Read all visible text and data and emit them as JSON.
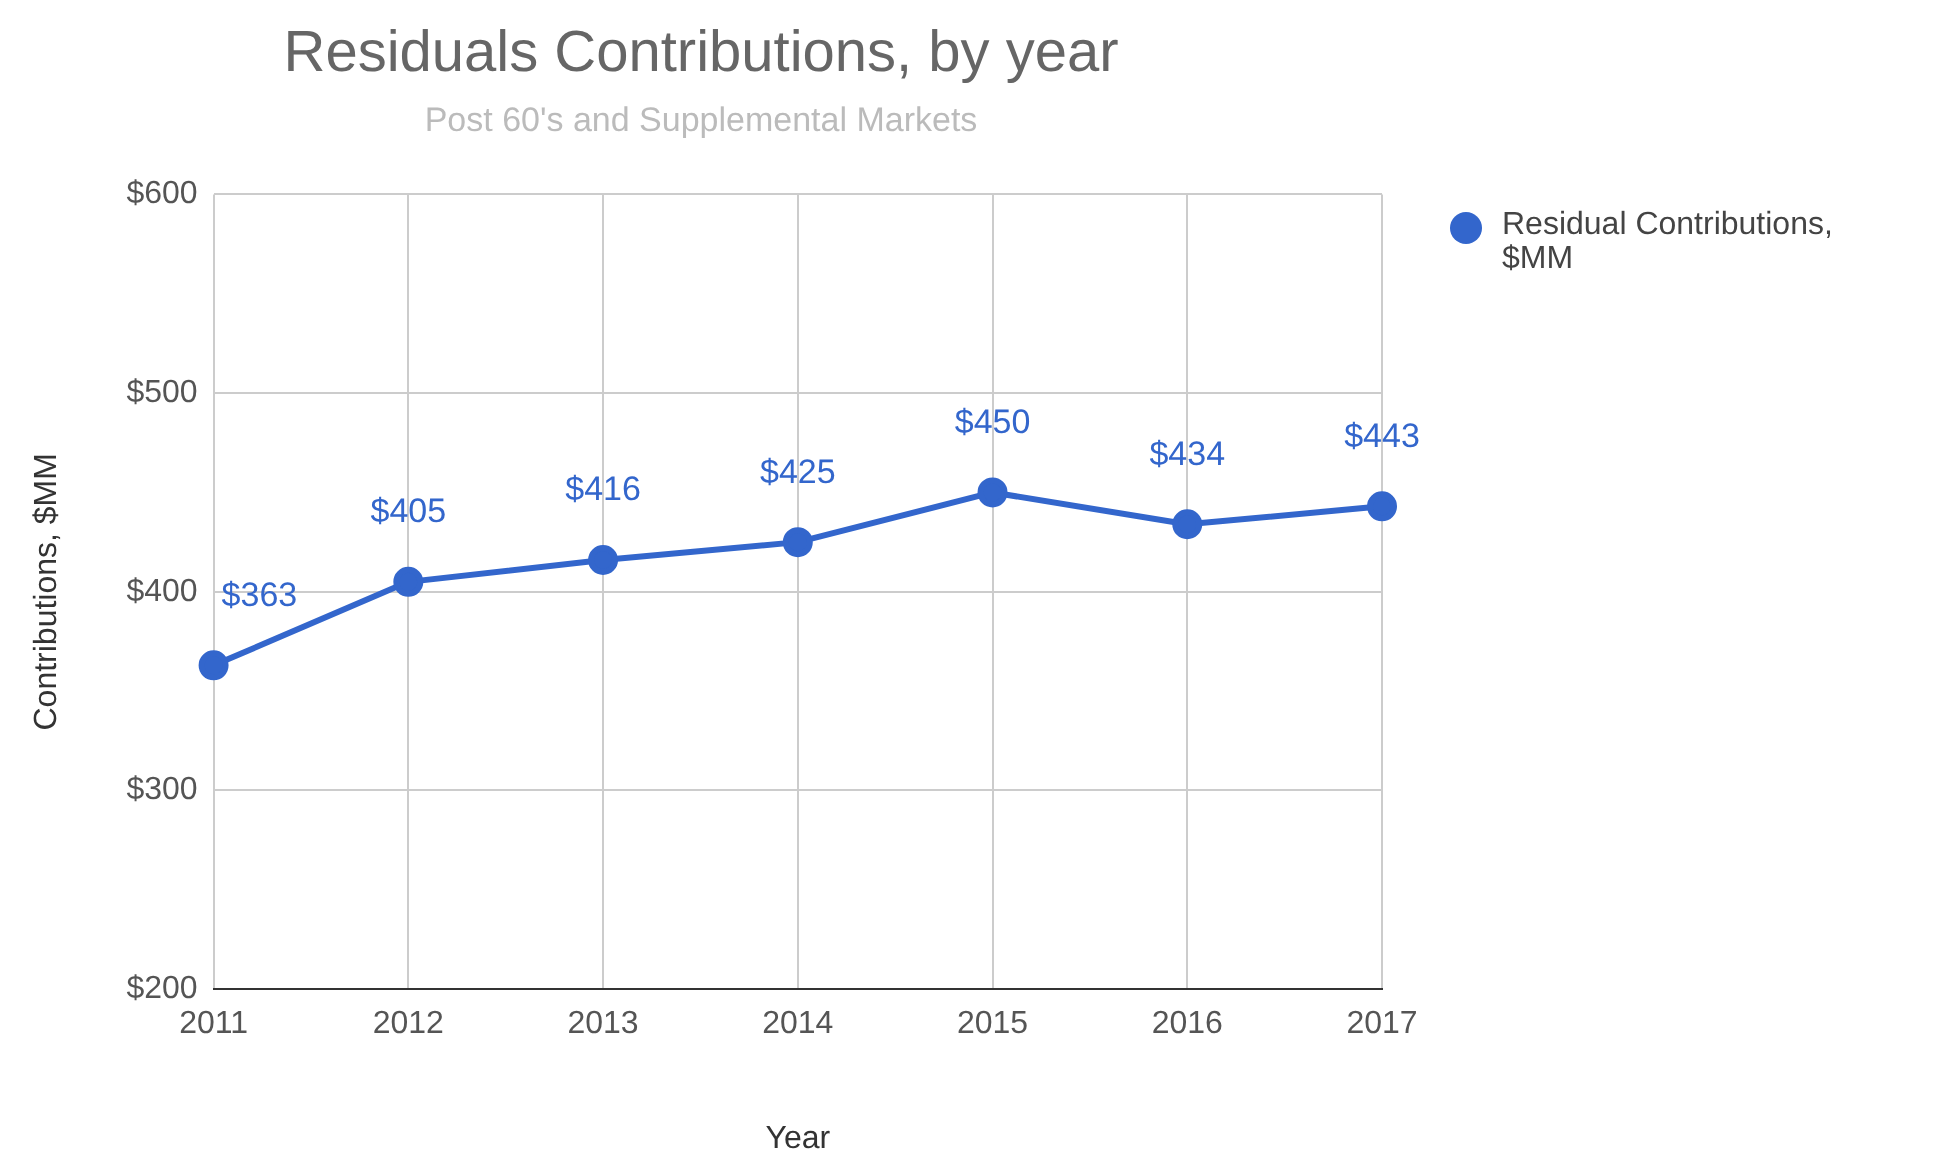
{
  "chart_data": {
    "type": "line",
    "title": "Residuals Contributions, by year",
    "subtitle": "Post 60's and Supplemental Markets",
    "xlabel": "Year",
    "ylabel": "Contributions, $MM",
    "categories": [
      "2011",
      "2012",
      "2013",
      "2014",
      "2015",
      "2016",
      "2017"
    ],
    "series": [
      {
        "name": "Residual Contributions, $MM",
        "color": "#3366cc",
        "values": [
          363,
          405,
          416,
          425,
          450,
          434,
          443
        ],
        "value_labels": [
          "$363",
          "$405",
          "$416",
          "$425",
          "$450",
          "$434",
          "$443"
        ]
      }
    ],
    "ylim": [
      200,
      600
    ],
    "yticks": [
      {
        "value": 200,
        "label": "$200"
      },
      {
        "value": 300,
        "label": "$300"
      },
      {
        "value": 400,
        "label": "$400"
      },
      {
        "value": 500,
        "label": "$500"
      },
      {
        "value": 600,
        "label": "$600"
      }
    ],
    "grid": true,
    "legend": "top right",
    "marker": "circle",
    "line_style": "solid"
  }
}
